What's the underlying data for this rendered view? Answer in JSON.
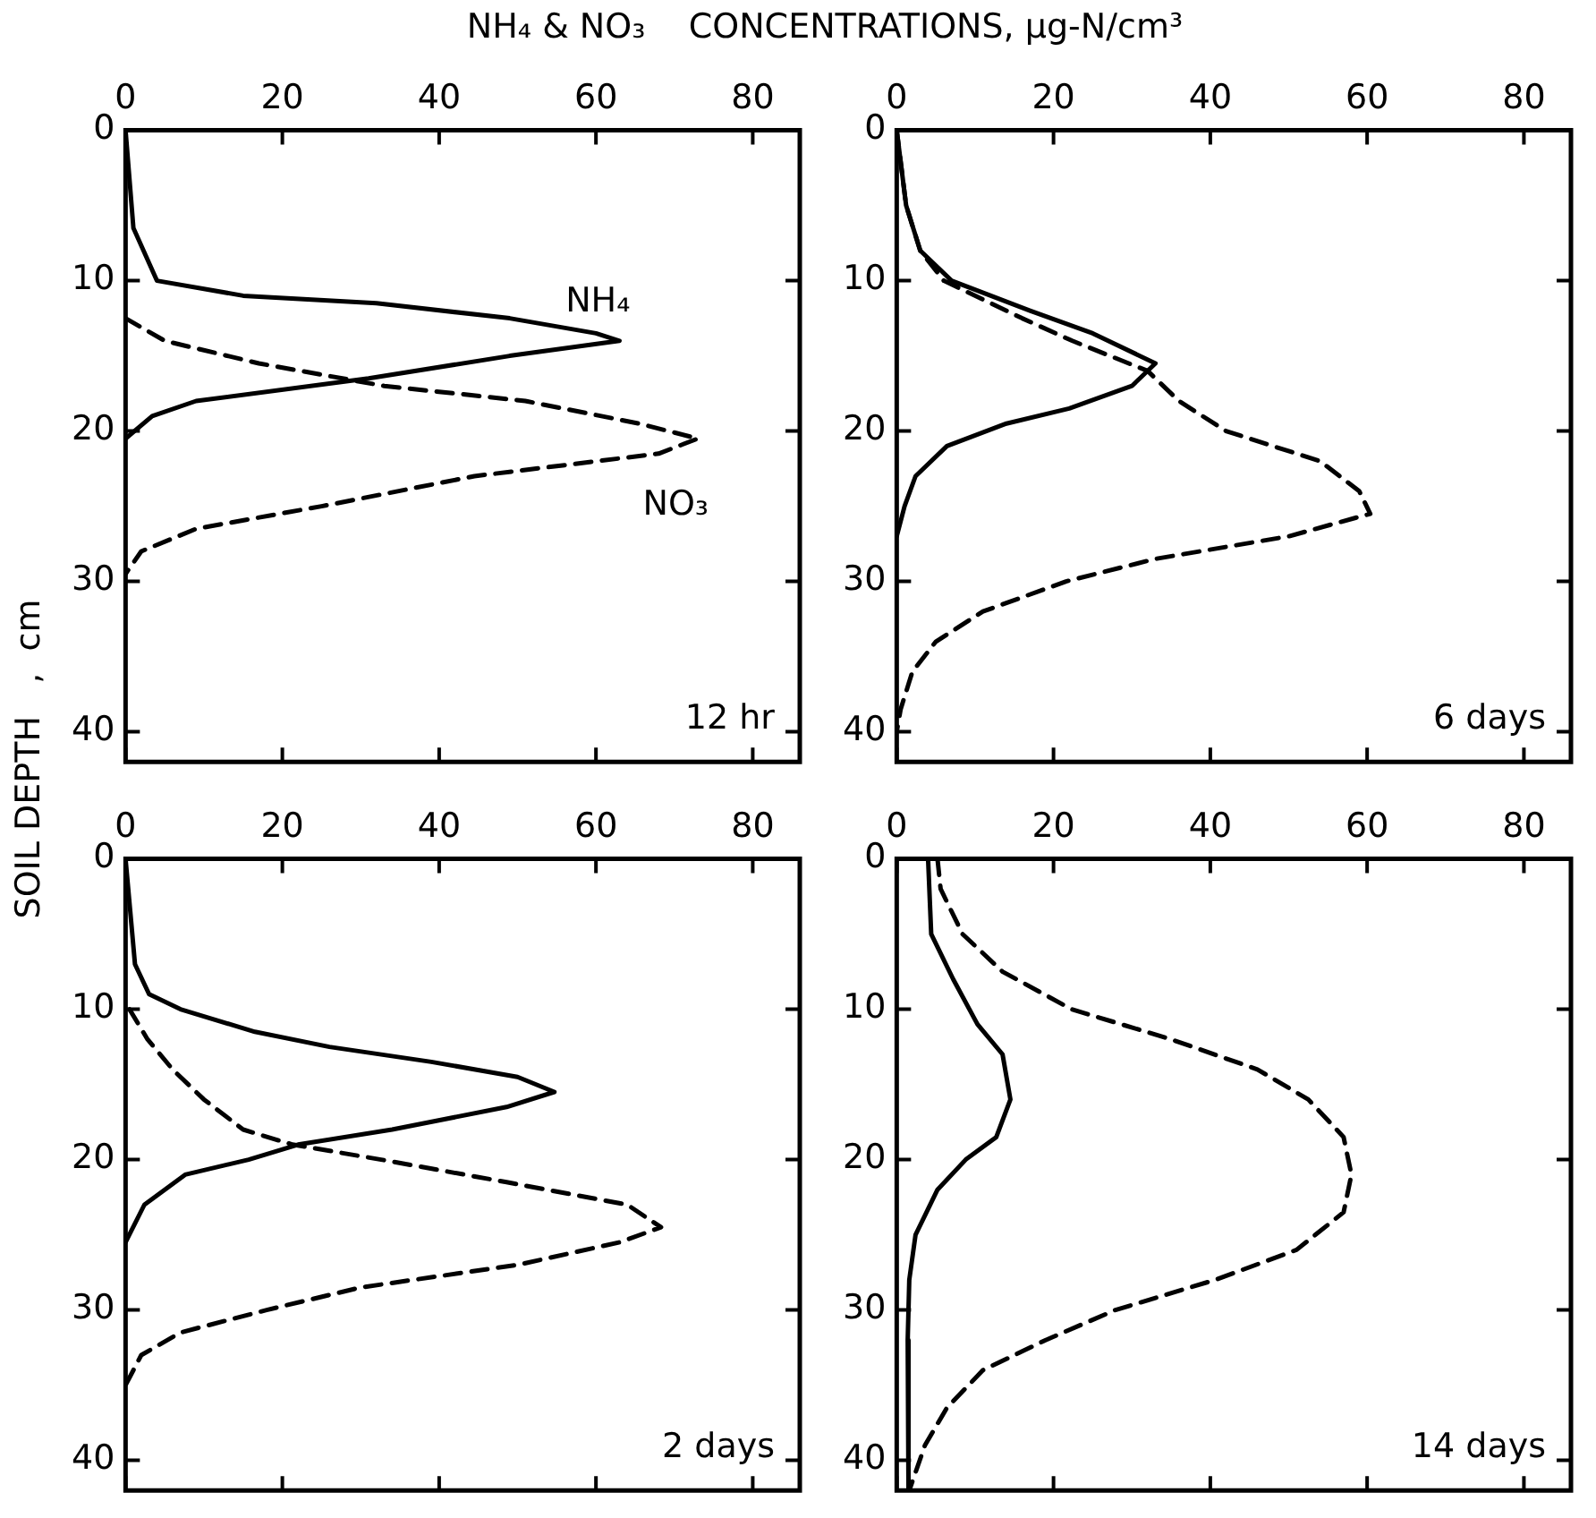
{
  "chart_data": [
    {
      "type": "line",
      "title": "NH₄ & NO₃    CONCENTRATIONS, μg-N/cm³",
      "ylabel": "SOIL DEPTH   ,  cm",
      "annotations": [
        "12 hr"
      ],
      "xlim": [
        0,
        86
      ],
      "xticks": [
        0,
        20,
        40,
        60,
        80
      ],
      "ylim": [
        42,
        0
      ],
      "yticks": [
        0,
        10,
        20,
        30,
        40
      ],
      "grid": false,
      "series": [
        {
          "name": "NH₄",
          "color": "#000000",
          "line_style": "solid",
          "x": [
            0,
            1,
            4,
            15,
            32,
            49,
            60,
            63,
            49,
            31,
            9,
            3.4,
            0
          ],
          "values": [
            0,
            6.5,
            10,
            11,
            11.5,
            12.5,
            13.5,
            14,
            15,
            16.5,
            18,
            19,
            20.5
          ]
        },
        {
          "name": "NO₃",
          "color": "#000000",
          "line_style": "dashed",
          "x": [
            0,
            5,
            17,
            33,
            51,
            65.5,
            73,
            68,
            44.5,
            25,
            9,
            2,
            0
          ],
          "values": [
            12.5,
            14,
            15.5,
            17,
            18,
            19.5,
            20.5,
            21.5,
            23,
            25,
            26.5,
            28,
            29.5
          ]
        }
      ]
    },
    {
      "type": "line",
      "annotations": [
        "6 days"
      ],
      "xlim": [
        0,
        86
      ],
      "xticks": [
        0,
        20,
        40,
        60,
        80
      ],
      "ylim": [
        42,
        0
      ],
      "yticks": [
        0,
        10,
        20,
        30,
        40
      ],
      "grid": false,
      "series": [
        {
          "color": "#000000",
          "line_style": "solid",
          "x": [
            0,
            1.2,
            3,
            7,
            17,
            25,
            33,
            30,
            22,
            14,
            6.4,
            2.4,
            1,
            0
          ],
          "values": [
            0,
            5,
            8,
            10,
            12,
            13.5,
            15.5,
            17,
            18.5,
            19.5,
            21,
            23,
            25,
            27
          ]
        },
        {
          "color": "#000000",
          "line_style": "dashed",
          "x": [
            0,
            1.2,
            3,
            6,
            16,
            22.4,
            32,
            36,
            42,
            54,
            59,
            60.4,
            50,
            33,
            21.6,
            11,
            5,
            2,
            0.5,
            0
          ],
          "values": [
            0,
            5,
            8,
            10,
            12.5,
            14,
            16,
            18,
            20,
            22,
            24,
            25.5,
            27,
            28.5,
            30,
            32,
            34,
            36,
            38.5,
            40
          ]
        }
      ]
    },
    {
      "type": "line",
      "annotations": [
        "2 days"
      ],
      "xlim": [
        0,
        86
      ],
      "xticks": [
        0,
        20,
        40,
        60,
        80
      ],
      "ylim": [
        42,
        0
      ],
      "yticks": [
        0,
        10,
        20,
        30,
        40
      ],
      "grid": false,
      "series": [
        {
          "color": "#000000",
          "line_style": "solid",
          "x": [
            0,
            1.2,
            3,
            7,
            16.5,
            26,
            39,
            50,
            54.7,
            48.6,
            34,
            22,
            15.7,
            7.6,
            2.4,
            0
          ],
          "values": [
            0,
            7,
            9,
            10,
            11.5,
            12.5,
            13.5,
            14.5,
            15.5,
            16.5,
            18,
            19,
            20,
            21,
            23,
            25.5
          ]
        },
        {
          "color": "#000000",
          "line_style": "dashed",
          "x": [
            0.5,
            2.8,
            6,
            10,
            15,
            21.3,
            32.6,
            48.6,
            64,
            68.3,
            63,
            50,
            30,
            18,
            7,
            2,
            0
          ],
          "values": [
            10,
            12,
            14,
            16,
            18,
            19,
            20,
            21.5,
            23,
            24.5,
            25.5,
            27,
            28.5,
            30,
            31.5,
            33,
            35
          ]
        }
      ]
    },
    {
      "type": "line",
      "annotations": [
        "14 days"
      ],
      "xlim": [
        0,
        86
      ],
      "xticks": [
        0,
        20,
        40,
        60,
        80
      ],
      "ylim": [
        42,
        0
      ],
      "yticks": [
        0,
        10,
        20,
        30,
        40
      ],
      "grid": false,
      "series": [
        {
          "color": "#000000",
          "line_style": "solid",
          "x": [
            4,
            4.4,
            7.2,
            10.3,
            13.5,
            14.5,
            12.7,
            8.8,
            5.2,
            2.4,
            1.6,
            1.4,
            1.5
          ],
          "values": [
            0,
            5,
            8,
            11,
            13,
            16,
            18.5,
            20,
            22,
            25,
            28,
            32,
            42
          ]
        },
        {
          "color": "#000000",
          "line_style": "dashed",
          "x": [
            5.2,
            5.6,
            8.4,
            13.5,
            22.3,
            35,
            46,
            52.5,
            57,
            58,
            57,
            51,
            40.6,
            27.9,
            19,
            11,
            6.4,
            3.6,
            1.6
          ],
          "values": [
            0,
            2,
            5,
            7.5,
            10,
            12,
            14,
            16,
            18.5,
            21,
            23.5,
            26,
            28,
            30,
            32,
            34,
            36.5,
            39,
            42
          ]
        }
      ]
    }
  ]
}
